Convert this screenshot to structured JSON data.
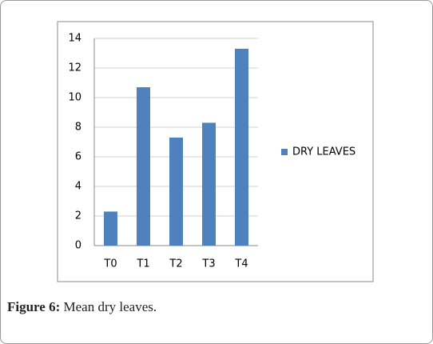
{
  "chart_data": {
    "type": "bar",
    "categories": [
      "T0",
      "T1",
      "T2",
      "T3",
      "T4"
    ],
    "series": [
      {
        "name": "DRY LEAVES",
        "color": "#4f81bd",
        "values": [
          2.3,
          10.7,
          7.3,
          8.3,
          13.3
        ]
      }
    ],
    "ylim": [
      0,
      14
    ],
    "yticks": [
      0,
      2,
      4,
      6,
      8,
      10,
      12,
      14
    ],
    "grid": true,
    "legend": "right"
  },
  "caption": {
    "label": "Figure 6:",
    "text": "Mean dry leaves."
  }
}
